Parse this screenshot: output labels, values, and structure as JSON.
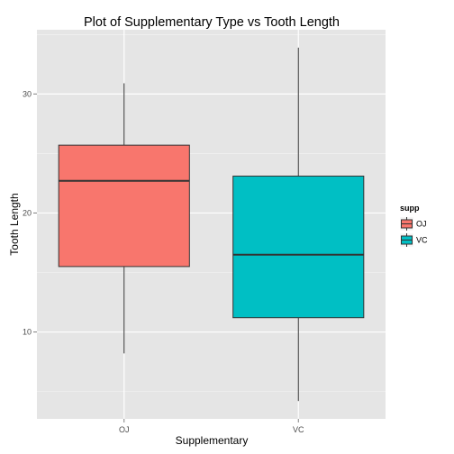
{
  "chart_data": {
    "type": "box",
    "title": "Plot of Supplementary Type vs Tooth Length",
    "xlabel": "Supplementary",
    "ylabel": "Tooth Length",
    "categories": [
      "OJ",
      "VC"
    ],
    "boxes": [
      {
        "name": "OJ",
        "min": 8.2,
        "q1": 15.5,
        "median": 22.7,
        "q3": 25.7,
        "max": 30.9,
        "color": "#F8766D"
      },
      {
        "name": "VC",
        "min": 4.2,
        "q1": 11.2,
        "median": 16.5,
        "q3": 23.1,
        "max": 33.9,
        "color": "#00BFC4"
      }
    ],
    "yticks": [
      10,
      20,
      30
    ],
    "ylim": [
      2.7,
      35.4
    ],
    "grid": true,
    "legend": {
      "title": "supp",
      "placement": "right",
      "items": [
        {
          "label": "OJ",
          "color": "#F8766D"
        },
        {
          "label": "VC",
          "color": "#00BFC4"
        }
      ]
    },
    "panel_background": "#E5E5E5",
    "grid_color": "#FFFFFF",
    "line_color": "#333333"
  }
}
